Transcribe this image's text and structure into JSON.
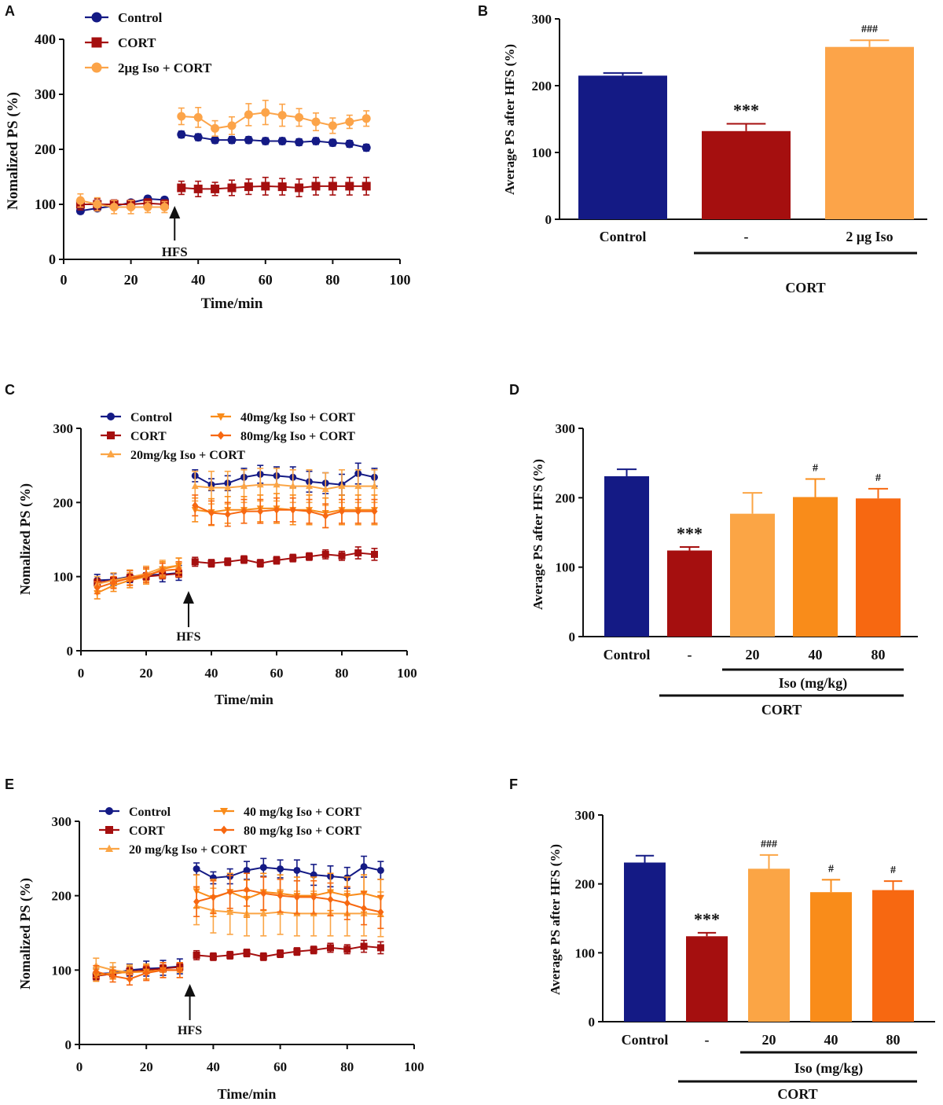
{
  "colors": {
    "control": "#141a85",
    "cort": "#a50f0f",
    "iso2ug": "#fca449",
    "iso20": "#fba545",
    "iso40": "#f98c1a",
    "iso80": "#f76811",
    "axis": "#111111"
  },
  "chart_data": [
    {
      "letter": "A",
      "type": "line",
      "xlabel": "Time/min",
      "ylabel": "Nomalized PS (%)",
      "xlim": [
        0,
        100
      ],
      "ylim": [
        0,
        400
      ],
      "xticks": [
        0,
        20,
        40,
        60,
        80,
        100
      ],
      "yticks": [
        0,
        100,
        200,
        300,
        400
      ],
      "annotation": "HFS",
      "annotation_x": 33,
      "legend": "top-left",
      "series": [
        {
          "name": "Control",
          "color": "#141a85",
          "marker": "circle",
          "x": [
            5,
            10,
            15,
            20,
            25,
            30,
            35,
            40,
            45,
            50,
            55,
            60,
            65,
            70,
            75,
            80,
            85,
            90
          ],
          "values": [
            88,
            93,
            97,
            103,
            110,
            108,
            227,
            222,
            217,
            217,
            217,
            215,
            215,
            213,
            215,
            212,
            210,
            203
          ],
          "err": [
            5,
            5,
            5,
            5,
            5,
            5,
            6,
            6,
            6,
            6,
            6,
            6,
            6,
            6,
            6,
            6,
            6,
            6
          ]
        },
        {
          "name": "CORT",
          "color": "#a50f0f",
          "marker": "square",
          "x": [
            5,
            10,
            15,
            20,
            25,
            30,
            35,
            40,
            45,
            50,
            55,
            60,
            65,
            70,
            75,
            80,
            85,
            90
          ],
          "values": [
            100,
            100,
            100,
            100,
            102,
            100,
            130,
            128,
            128,
            130,
            132,
            133,
            132,
            130,
            133,
            133,
            133,
            133
          ],
          "err": [
            10,
            10,
            8,
            8,
            8,
            8,
            12,
            14,
            12,
            14,
            14,
            16,
            15,
            16,
            16,
            16,
            16,
            16
          ]
        },
        {
          "name": "2μg Iso + CORT",
          "color": "#fca449",
          "marker": "circle",
          "x": [
            5,
            10,
            15,
            20,
            25,
            30,
            35,
            40,
            45,
            50,
            55,
            60,
            65,
            70,
            75,
            80,
            85,
            90
          ],
          "values": [
            107,
            100,
            95,
            95,
            95,
            95,
            260,
            258,
            238,
            243,
            263,
            267,
            262,
            258,
            250,
            243,
            250,
            256
          ],
          "err": [
            12,
            12,
            12,
            12,
            10,
            10,
            15,
            18,
            14,
            16,
            20,
            22,
            20,
            16,
            16,
            14,
            12,
            14
          ]
        }
      ]
    },
    {
      "letter": "B",
      "type": "bar",
      "ylabel": "Average PS after HFS (%)",
      "ylim": [
        0,
        300
      ],
      "yticks": [
        0,
        100,
        200,
        300
      ],
      "categories": [
        "Control",
        "-",
        "2 μg Iso"
      ],
      "values": [
        215,
        132,
        258
      ],
      "err": [
        4,
        11,
        10
      ],
      "annotations": [
        "",
        "***",
        "###"
      ],
      "group_labels": [
        {
          "label": "CORT",
          "from": 1,
          "to": 2
        }
      ],
      "colors": [
        "#141a85",
        "#a50f0f",
        "#fca449"
      ]
    },
    {
      "letter": "C",
      "type": "line",
      "xlabel": "Time/min",
      "ylabel": "Nomalized PS (%)",
      "xlim": [
        0,
        100
      ],
      "ylim": [
        0,
        300
      ],
      "xticks": [
        0,
        20,
        40,
        60,
        80,
        100
      ],
      "yticks": [
        0,
        100,
        200,
        300
      ],
      "annotation": "HFS",
      "annotation_x": 33,
      "legend": "top",
      "series": [
        {
          "name": "Control",
          "color": "#141a85",
          "marker": "circle",
          "x": [
            5,
            10,
            15,
            20,
            25,
            30,
            35,
            40,
            45,
            50,
            55,
            60,
            65,
            70,
            75,
            80,
            85,
            90
          ],
          "values": [
            95,
            96,
            100,
            102,
            103,
            105,
            236,
            224,
            226,
            234,
            238,
            236,
            234,
            228,
            226,
            224,
            239,
            234
          ],
          "err": [
            8,
            8,
            8,
            10,
            10,
            10,
            8,
            8,
            10,
            12,
            12,
            12,
            14,
            14,
            14,
            14,
            14,
            12
          ]
        },
        {
          "name": "CORT",
          "color": "#a50f0f",
          "marker": "square",
          "x": [
            5,
            10,
            15,
            20,
            25,
            30,
            35,
            40,
            45,
            50,
            55,
            60,
            65,
            70,
            75,
            80,
            85,
            90
          ],
          "values": [
            92,
            95,
            98,
            100,
            102,
            104,
            120,
            118,
            120,
            123,
            118,
            122,
            125,
            127,
            130,
            128,
            132,
            130
          ],
          "err": [
            5,
            5,
            5,
            5,
            5,
            5,
            6,
            5,
            5,
            5,
            5,
            5,
            5,
            5,
            6,
            6,
            8,
            8
          ]
        },
        {
          "name": "20mg/kg Iso + CORT",
          "color": "#fba545",
          "marker": "triangle-up",
          "x": [
            5,
            10,
            15,
            20,
            25,
            30,
            35,
            40,
            45,
            50,
            55,
            60,
            65,
            70,
            75,
            80,
            85,
            90
          ],
          "values": [
            90,
            95,
            99,
            104,
            112,
            115,
            222,
            220,
            220,
            222,
            224,
            224,
            222,
            222,
            218,
            222,
            222,
            222
          ],
          "err": [
            10,
            10,
            10,
            10,
            10,
            10,
            20,
            22,
            22,
            22,
            22,
            22,
            22,
            22,
            22,
            22,
            22,
            22
          ]
        },
        {
          "name": "40mg/kg Iso + CORT",
          "color": "#f98c1a",
          "marker": "triangle-down",
          "x": [
            5,
            10,
            15,
            20,
            25,
            30,
            35,
            40,
            45,
            50,
            55,
            60,
            65,
            70,
            75,
            80,
            85,
            90
          ],
          "values": [
            78,
            88,
            95,
            100,
            110,
            115,
            190,
            187,
            190,
            190,
            192,
            192,
            190,
            190,
            186,
            190,
            190,
            190
          ],
          "err": [
            8,
            8,
            10,
            10,
            10,
            10,
            16,
            18,
            18,
            18,
            18,
            20,
            20,
            20,
            20,
            20,
            20,
            20
          ]
        },
        {
          "name": "80mg/kg Iso + CORT",
          "color": "#f76811",
          "marker": "diamond",
          "x": [
            5,
            10,
            15,
            20,
            25,
            30,
            35,
            40,
            45,
            50,
            55,
            60,
            65,
            70,
            75,
            80,
            85,
            90
          ],
          "values": [
            85,
            92,
            98,
            102,
            108,
            110,
            196,
            186,
            184,
            188,
            188,
            190,
            190,
            188,
            182,
            188,
            188,
            188
          ],
          "err": [
            8,
            8,
            10,
            10,
            10,
            10,
            14,
            16,
            16,
            16,
            16,
            16,
            16,
            16,
            16,
            16,
            16,
            16
          ]
        }
      ]
    },
    {
      "letter": "D",
      "type": "bar",
      "ylabel": "Average PS after HFS (%)",
      "ylim": [
        0,
        300
      ],
      "yticks": [
        0,
        100,
        200,
        300
      ],
      "categories": [
        "Control",
        "-",
        "20",
        "40",
        "80"
      ],
      "values": [
        231,
        124,
        177,
        201,
        199
      ],
      "err": [
        10,
        5,
        30,
        26,
        14
      ],
      "annotations": [
        "",
        "***",
        "",
        "#",
        "#"
      ],
      "group_labels": [
        {
          "label": "Iso (mg/kg)",
          "from": 2,
          "to": 4
        },
        {
          "label": "CORT",
          "from": 1,
          "to": 4
        }
      ],
      "colors": [
        "#141a85",
        "#a50f0f",
        "#fba545",
        "#f98c1a",
        "#f76811"
      ]
    },
    {
      "letter": "E",
      "type": "line",
      "xlabel": "Time/min",
      "ylabel": "Nomalized PS (%)",
      "xlim": [
        0,
        100
      ],
      "ylim": [
        0,
        300
      ],
      "xticks": [
        0,
        20,
        40,
        60,
        80,
        100
      ],
      "yticks": [
        0,
        100,
        200,
        300
      ],
      "annotation": "HFS",
      "annotation_x": 33,
      "legend": "top",
      "series": [
        {
          "name": "Control",
          "color": "#141a85",
          "marker": "circle",
          "x": [
            5,
            10,
            15,
            20,
            25,
            30,
            35,
            40,
            45,
            50,
            55,
            60,
            65,
            70,
            75,
            80,
            85,
            90
          ],
          "values": [
            95,
            96,
            100,
            102,
            103,
            105,
            236,
            224,
            226,
            234,
            238,
            236,
            234,
            228,
            226,
            224,
            239,
            234
          ],
          "err": [
            8,
            8,
            8,
            10,
            10,
            10,
            8,
            8,
            10,
            12,
            12,
            12,
            14,
            14,
            14,
            14,
            14,
            12
          ]
        },
        {
          "name": "CORT",
          "color": "#a50f0f",
          "marker": "square",
          "x": [
            5,
            10,
            15,
            20,
            25,
            30,
            35,
            40,
            45,
            50,
            55,
            60,
            65,
            70,
            75,
            80,
            85,
            90
          ],
          "values": [
            92,
            95,
            98,
            100,
            102,
            104,
            120,
            118,
            120,
            123,
            118,
            122,
            125,
            127,
            130,
            128,
            132,
            130
          ],
          "err": [
            5,
            5,
            5,
            5,
            5,
            5,
            6,
            5,
            5,
            5,
            5,
            5,
            5,
            5,
            6,
            6,
            8,
            8
          ]
        },
        {
          "name": "20 mg/kg Iso + CORT",
          "color": "#fba545",
          "marker": "triangle-up",
          "x": [
            5,
            10,
            15,
            20,
            25,
            30,
            35,
            40,
            45,
            50,
            55,
            60,
            65,
            70,
            75,
            80,
            85,
            90
          ],
          "values": [
            106,
            100,
            97,
            98,
            100,
            100,
            186,
            180,
            178,
            176,
            176,
            178,
            176,
            176,
            176,
            176,
            176,
            175
          ],
          "err": [
            10,
            10,
            10,
            10,
            10,
            10,
            25,
            30,
            30,
            30,
            30,
            30,
            30,
            30,
            30,
            30,
            30,
            30
          ]
        },
        {
          "name": "40 mg/kg Iso + CORT",
          "color": "#f98c1a",
          "marker": "triangle-down",
          "x": [
            5,
            10,
            15,
            20,
            25,
            30,
            35,
            40,
            45,
            50,
            55,
            60,
            65,
            70,
            75,
            80,
            85,
            90
          ],
          "values": [
            93,
            96,
            97,
            98,
            100,
            100,
            206,
            197,
            205,
            196,
            205,
            203,
            200,
            200,
            205,
            200,
            203,
            197
          ],
          "err": [
            8,
            8,
            8,
            10,
            10,
            10,
            22,
            25,
            25,
            25,
            25,
            25,
            25,
            25,
            25,
            25,
            25,
            25
          ]
        },
        {
          "name": "80 mg/kg Iso + CORT",
          "color": "#f76811",
          "marker": "diamond",
          "x": [
            5,
            10,
            15,
            20,
            25,
            30,
            35,
            40,
            45,
            50,
            55,
            60,
            65,
            70,
            75,
            80,
            85,
            90
          ],
          "values": [
            98,
            92,
            88,
            96,
            100,
            100,
            192,
            198,
            205,
            208,
            203,
            200,
            198,
            198,
            195,
            190,
            183,
            178
          ],
          "err": [
            8,
            8,
            8,
            10,
            10,
            10,
            20,
            22,
            22,
            22,
            22,
            22,
            22,
            22,
            22,
            22,
            22,
            22
          ]
        }
      ]
    },
    {
      "letter": "F",
      "type": "bar",
      "ylabel": "Average PS after HFS (%)",
      "ylim": [
        0,
        300
      ],
      "yticks": [
        0,
        100,
        200,
        300
      ],
      "categories": [
        "Control",
        "-",
        "20",
        "40",
        "80"
      ],
      "values": [
        231,
        124,
        222,
        188,
        191
      ],
      "err": [
        10,
        5,
        20,
        18,
        13
      ],
      "annotations": [
        "",
        "***",
        "###",
        "#",
        "#"
      ],
      "group_labels": [
        {
          "label": "Iso (mg/kg)",
          "from": 2,
          "to": 4
        },
        {
          "label": "CORT",
          "from": 1,
          "to": 4
        }
      ],
      "colors": [
        "#141a85",
        "#a50f0f",
        "#fba545",
        "#f98c1a",
        "#f76811"
      ]
    }
  ]
}
